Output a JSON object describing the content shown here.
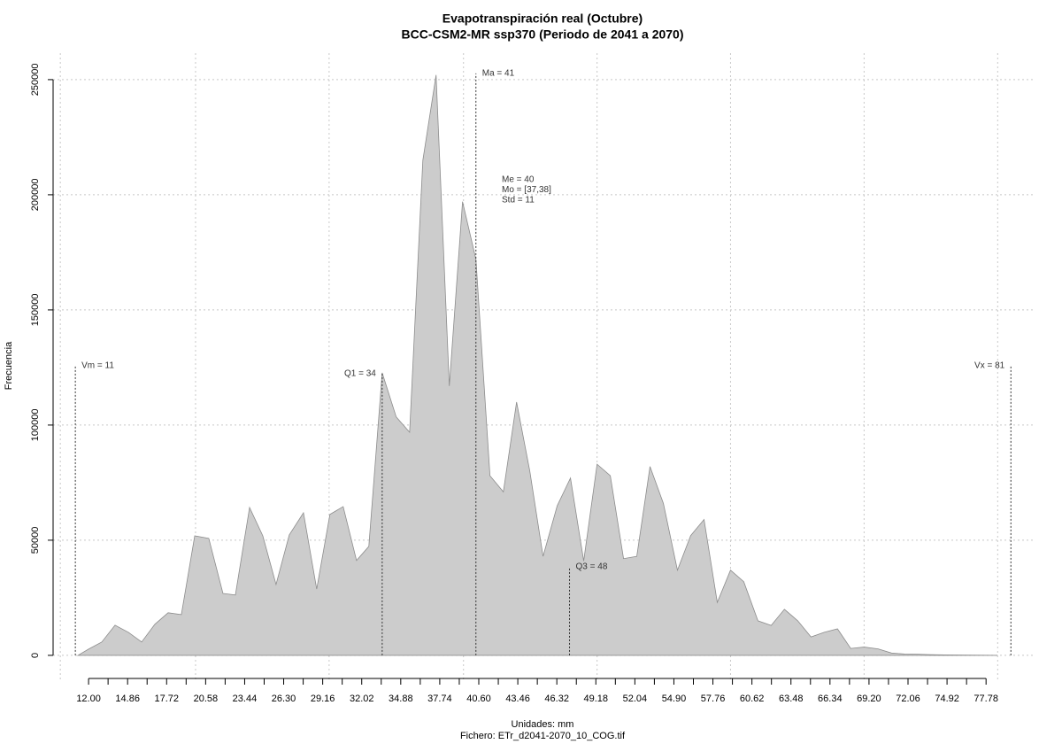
{
  "chart_data": {
    "type": "area",
    "title": "Evapotranspiración real (Octubre)",
    "subtitle": "BCC-CSM2-MR ssp370 (Periodo de 2041 a 2070)",
    "xlabel": "Unidades: mm",
    "caption": "Fichero: ETr_d2041-2070_10_COG.tif",
    "ylabel": "Frecuencia",
    "color": "#cccccc",
    "edge_color": "#8c8c8c",
    "x": [
      11.22,
      12.0,
      12.97,
      13.94,
      14.92,
      15.89,
      16.86,
      17.83,
      18.8,
      19.78,
      20.81,
      21.85,
      22.76,
      23.8,
      24.77,
      25.74,
      26.71,
      27.75,
      28.72,
      29.69,
      30.66,
      31.64,
      32.54,
      33.52,
      34.55,
      35.53,
      36.5,
      37.47,
      38.44,
      39.41,
      40.39,
      41.42,
      42.4,
      43.37,
      44.34,
      45.31,
      46.35,
      47.32,
      48.29,
      49.27,
      50.24,
      51.21,
      52.18,
      53.15,
      54.13,
      55.16,
      56.13,
      57.11,
      58.08,
      59.05,
      60.02,
      61.06,
      62.03,
      63.0,
      63.98,
      64.95,
      65.92,
      66.89,
      67.86,
      68.84,
      69.87,
      70.85,
      71.82,
      72.79,
      73.76,
      74.73,
      75.71,
      76.68,
      77.65,
      78.62
    ],
    "values": [
      0,
      2700,
      5800,
      13100,
      10000,
      5800,
      13500,
      18500,
      17700,
      51900,
      50800,
      26900,
      26200,
      64200,
      51900,
      30800,
      52300,
      61900,
      28800,
      61200,
      64600,
      41200,
      47300,
      122700,
      103500,
      96900,
      215000,
      252000,
      117000,
      197000,
      172000,
      78000,
      71000,
      110000,
      80000,
      43000,
      65000,
      77000,
      41000,
      83000,
      78000,
      42000,
      43000,
      82000,
      66000,
      37000,
      52000,
      59000,
      23000,
      37000,
      32000,
      15000,
      13000,
      20000,
      15000,
      8000,
      10000,
      11500,
      3000,
      3600,
      2800,
      1000,
      600,
      500,
      300,
      200,
      150,
      100,
      50,
      0
    ],
    "xlim": [
      9.4,
      81.4
    ],
    "ylim": [
      -10800,
      261500
    ],
    "xticks": [
      {
        "value": 12,
        "label": "12.00"
      },
      {
        "value": 14.86,
        "label": "14.86"
      },
      {
        "value": 17.72,
        "label": "17.72"
      },
      {
        "value": 20.58,
        "label": "20.58"
      },
      {
        "value": 23.44,
        "label": "23.44"
      },
      {
        "value": 26.3,
        "label": "26.30"
      },
      {
        "value": 29.16,
        "label": "29.16"
      },
      {
        "value": 32.02,
        "label": "32.02"
      },
      {
        "value": 34.88,
        "label": "34.88"
      },
      {
        "value": 37.74,
        "label": "37.74"
      },
      {
        "value": 40.6,
        "label": "40.60"
      },
      {
        "value": 43.46,
        "label": "43.46"
      },
      {
        "value": 46.32,
        "label": "46.32"
      },
      {
        "value": 49.18,
        "label": "49.18"
      },
      {
        "value": 52.04,
        "label": "52.04"
      },
      {
        "value": 54.9,
        "label": "54.90"
      },
      {
        "value": 57.76,
        "label": "57.76"
      },
      {
        "value": 60.62,
        "label": "60.62"
      },
      {
        "value": 63.48,
        "label": "63.48"
      },
      {
        "value": 66.34,
        "label": "66.34"
      },
      {
        "value": 69.2,
        "label": "69.20"
      },
      {
        "value": 72.06,
        "label": "72.06"
      },
      {
        "value": 74.92,
        "label": "74.92"
      },
      {
        "value": 77.78,
        "label": "77.78"
      }
    ],
    "xminor_ticks": [
      13.43,
      16.29,
      19.15,
      22.01,
      24.87,
      27.73,
      30.59,
      33.45,
      36.31,
      39.17,
      42.03,
      44.89,
      47.75,
      50.61,
      53.47,
      56.33,
      59.19,
      62.05,
      64.91,
      67.77,
      70.63,
      73.49,
      76.35
    ],
    "yticks": [
      0,
      50000,
      100000,
      150000,
      200000,
      250000
    ],
    "xgrid": [
      9.93,
      19.84,
      29.63,
      39.48,
      49.27,
      59.05,
      68.84,
      78.63
    ],
    "grid": true,
    "annotations": [
      {
        "text": "Vm = 11",
        "x": 11.03,
        "y": 125800,
        "anchor": "start"
      },
      {
        "text": "Q1 = 34",
        "x": 33.52,
        "y": 122300,
        "anchor": "end"
      },
      {
        "text": "Ma = 41",
        "x": 40.39,
        "y": 252700,
        "anchor": "start"
      },
      {
        "text": "Q3 = 48",
        "x": 47.25,
        "y": 38500,
        "anchor": "start"
      },
      {
        "text": "Vx = 81",
        "x": 79.6,
        "y": 125800,
        "anchor": "end"
      }
    ],
    "stats_text": [
      "Me = 40",
      "Mo = [37,38]",
      "Std = 11"
    ]
  }
}
